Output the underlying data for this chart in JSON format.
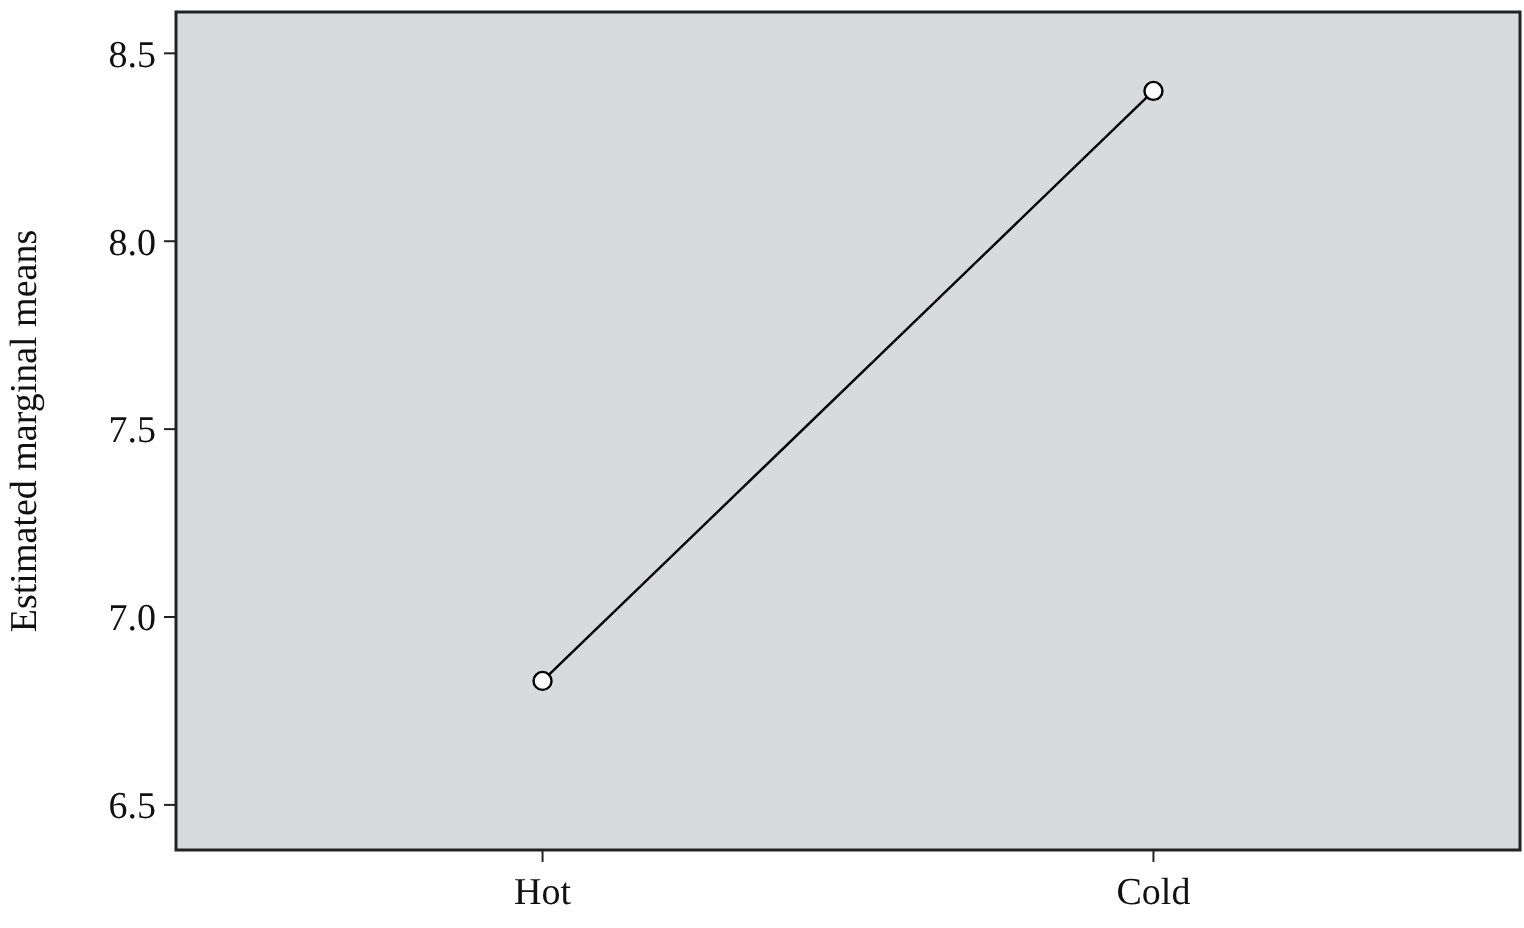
{
  "chart_data": {
    "type": "line",
    "ylabel": "Estimated marginal means",
    "categories": [
      "Hot",
      "Cold"
    ],
    "series": [
      {
        "color": "#000000",
        "values": [
          6.83,
          8.4
        ]
      }
    ],
    "ylim": [
      6.38,
      8.61
    ],
    "yticks": [
      6.5,
      {
        "value": 7,
        "label": "7.0"
      },
      7.5,
      {
        "value": 8,
        "label": "8.0"
      },
      8.5
    ],
    "marker": "circle",
    "line_style": "solid",
    "grid": false
  }
}
